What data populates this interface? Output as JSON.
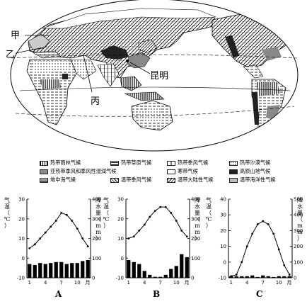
{
  "map": {
    "labels": {
      "jia": "甲",
      "yi": "乙",
      "bing": "丙",
      "kunming": "昆明"
    }
  },
  "legend": [
    {
      "id": "rainforest",
      "label": "热带雨林气候",
      "pattern": "vertical-dense"
    },
    {
      "id": "savanna",
      "label": "热带草原气候",
      "pattern": "horizontal-dash"
    },
    {
      "id": "tropical-monsoon",
      "label": "热带季风气候",
      "pattern": "box-vertical"
    },
    {
      "id": "desert",
      "label": "热带沙漠气候",
      "pattern": "dots"
    },
    {
      "id": "subtropical-monsoon",
      "label": "亚热带季风和季风性湿润气候",
      "pattern": "gray"
    },
    {
      "id": "tundra",
      "label": "寒带气候",
      "pattern": "blank"
    },
    {
      "id": "highland",
      "label": "高原山地气候",
      "pattern": "black"
    },
    {
      "id": "mediterranean",
      "label": "地中海气候",
      "pattern": "brick"
    },
    {
      "id": "temperate-monsoon",
      "label": "温带季风气候",
      "pattern": "diagonal"
    },
    {
      "id": "continental",
      "label": "温带大陆性气候",
      "pattern": "diagonal-box"
    },
    {
      "id": "oceanic",
      "label": "温带海洋性气候",
      "pattern": "light-gray"
    }
  ],
  "chart_data": [
    {
      "type": "bar",
      "name": "A",
      "x_ticks": [
        "1",
        "4",
        "7",
        "10",
        "月"
      ],
      "categories": [
        "1",
        "2",
        "3",
        "4",
        "5",
        "6",
        "7",
        "8",
        "9",
        "10",
        "11",
        "12"
      ],
      "ylabel_left": "气温（℃）",
      "ylabel_right": "降水量（mm）",
      "left_ticks": [
        "-10",
        "0",
        "10",
        "20",
        "30"
      ],
      "right_ticks": [
        "0",
        "100",
        "200",
        "300",
        "400"
      ],
      "ylim_left": [
        -10,
        30
      ],
      "ylim_right": [
        0,
        400
      ],
      "temperature": [
        5,
        7,
        10,
        13,
        16,
        19,
        23,
        22,
        19,
        15,
        10,
        6
      ],
      "precipitation": [
        70,
        65,
        75,
        70,
        75,
        80,
        80,
        70,
        75,
        75,
        85,
        90
      ]
    },
    {
      "type": "bar",
      "name": "B",
      "x_ticks": [
        "1",
        "4",
        "7",
        "10",
        "月"
      ],
      "categories": [
        "1",
        "2",
        "3",
        "4",
        "5",
        "6",
        "7",
        "8",
        "9",
        "10",
        "11",
        "12"
      ],
      "ylabel_left": "气温（℃）",
      "ylabel_right": "降水量（mm）",
      "left_ticks": [
        "-10",
        "0",
        "10",
        "20",
        "30"
      ],
      "right_ticks": [
        "0",
        "100",
        "200",
        "300",
        "400"
      ],
      "ylim_left": [
        -10,
        30
      ],
      "ylim_right": [
        0,
        400
      ],
      "temperature": [
        10,
        11,
        14,
        17,
        21,
        24,
        26,
        26,
        23,
        19,
        14,
        11
      ],
      "precipitation": [
        90,
        80,
        70,
        35,
        15,
        5,
        5,
        15,
        45,
        60,
        120,
        105
      ]
    },
    {
      "type": "bar",
      "name": "C",
      "x_ticks": [
        "1",
        "4",
        "7",
        "10",
        "月"
      ],
      "categories": [
        "1",
        "2",
        "3",
        "4",
        "5",
        "6",
        "7",
        "8",
        "9",
        "10",
        "11",
        "12"
      ],
      "ylabel_left": "气温（℃）",
      "ylabel_right": "降水量（mm）",
      "left_ticks": [
        "-10",
        "0",
        "10",
        "20",
        "30",
        "40"
      ],
      "right_ticks": [
        "0",
        "100",
        "200",
        "300",
        "400",
        "500"
      ],
      "ylim_left": [
        -10,
        40
      ],
      "ylim_right": [
        0,
        500
      ],
      "temperature": [
        -9,
        -8,
        0,
        10,
        18,
        24,
        26,
        24,
        18,
        8,
        -2,
        -8
      ],
      "precipitation": [
        10,
        10,
        10,
        10,
        15,
        5,
        15,
        10,
        5,
        10,
        10,
        10
      ]
    }
  ]
}
